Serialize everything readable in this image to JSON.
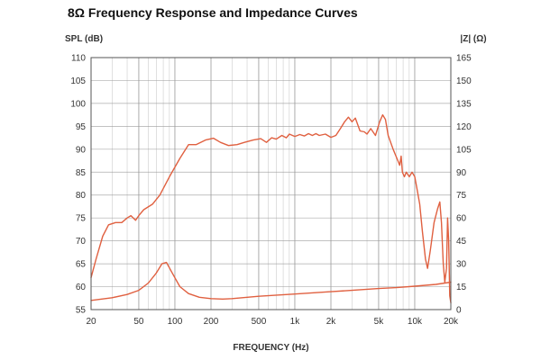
{
  "chart_data": {
    "type": "line",
    "title": "8Ω Frequency Response and Impedance Curves",
    "xlabel": "FREQUENCY (Hz)",
    "ylabel_left": "SPL (dB)",
    "ylabel_right": "|Z| (Ω)",
    "x_scale": "log",
    "xlim": [
      20,
      20000
    ],
    "ylim_left": [
      55,
      110
    ],
    "ylim_right": [
      0,
      165
    ],
    "grid": true,
    "colors": {
      "curve": "#e06040",
      "grid": "#999999",
      "frame": "#555555"
    },
    "x_ticks": [
      {
        "value": 20,
        "label": "20"
      },
      {
        "value": 50,
        "label": "50"
      },
      {
        "value": 100,
        "label": "100"
      },
      {
        "value": 200,
        "label": "200"
      },
      {
        "value": 500,
        "label": "500"
      },
      {
        "value": 1000,
        "label": "1k"
      },
      {
        "value": 2000,
        "label": "2k"
      },
      {
        "value": 5000,
        "label": "5k"
      },
      {
        "value": 10000,
        "label": "10k"
      },
      {
        "value": 20000,
        "label": "20k"
      }
    ],
    "y_ticks_left": [
      110,
      105,
      100,
      95,
      90,
      85,
      80,
      75,
      70,
      65,
      60,
      55
    ],
    "y_ticks_right": [
      165,
      150,
      135,
      120,
      105,
      90,
      75,
      60,
      45,
      30,
      15,
      0
    ],
    "series": [
      {
        "axis": "left",
        "points": [
          [
            20,
            62
          ],
          [
            22,
            66
          ],
          [
            25,
            71
          ],
          [
            28,
            73.5
          ],
          [
            32,
            74
          ],
          [
            36,
            74
          ],
          [
            40,
            75
          ],
          [
            43,
            75.5
          ],
          [
            47,
            74.5
          ],
          [
            50,
            75.5
          ],
          [
            55,
            76.8
          ],
          [
            65,
            78
          ],
          [
            75,
            80
          ],
          [
            90,
            84
          ],
          [
            110,
            88
          ],
          [
            130,
            91
          ],
          [
            150,
            91
          ],
          [
            180,
            92
          ],
          [
            210,
            92.4
          ],
          [
            240,
            91.5
          ],
          [
            280,
            90.8
          ],
          [
            330,
            91
          ],
          [
            380,
            91.5
          ],
          [
            450,
            92
          ],
          [
            520,
            92.3
          ],
          [
            580,
            91.5
          ],
          [
            640,
            92.5
          ],
          [
            700,
            92.2
          ],
          [
            780,
            93
          ],
          [
            850,
            92.5
          ],
          [
            900,
            93.3
          ],
          [
            1000,
            92.8
          ],
          [
            1100,
            93.2
          ],
          [
            1200,
            92.9
          ],
          [
            1300,
            93.4
          ],
          [
            1400,
            93
          ],
          [
            1500,
            93.4
          ],
          [
            1600,
            93
          ],
          [
            1800,
            93.3
          ],
          [
            2000,
            92.6
          ],
          [
            2200,
            93
          ],
          [
            2400,
            94.5
          ],
          [
            2600,
            96
          ],
          [
            2800,
            97
          ],
          [
            3000,
            96
          ],
          [
            3200,
            96.8
          ],
          [
            3500,
            94
          ],
          [
            3800,
            93.8
          ],
          [
            4000,
            93.3
          ],
          [
            4300,
            94.5
          ],
          [
            4700,
            93
          ],
          [
            5100,
            96
          ],
          [
            5400,
            97.5
          ],
          [
            5700,
            96.5
          ],
          [
            6000,
            93
          ],
          [
            6600,
            90
          ],
          [
            7100,
            88
          ],
          [
            7500,
            86.5
          ],
          [
            7700,
            88.5
          ],
          [
            7900,
            85
          ],
          [
            8200,
            84
          ],
          [
            8500,
            85
          ],
          [
            9000,
            84
          ],
          [
            9500,
            85
          ],
          [
            10000,
            84
          ],
          [
            10500,
            81
          ],
          [
            11000,
            78
          ],
          [
            11600,
            72
          ],
          [
            12300,
            66
          ],
          [
            12800,
            64
          ],
          [
            13500,
            68
          ],
          [
            14500,
            74
          ],
          [
            15500,
            77
          ],
          [
            16200,
            78.5
          ],
          [
            16700,
            74
          ],
          [
            17300,
            65
          ],
          [
            17800,
            61
          ],
          [
            18400,
            64
          ],
          [
            18800,
            75
          ],
          [
            19200,
            70
          ],
          [
            19600,
            58
          ],
          [
            20000,
            56.5
          ]
        ]
      },
      {
        "axis": "left",
        "points": [
          [
            20,
            57
          ],
          [
            30,
            57.6
          ],
          [
            40,
            58.3
          ],
          [
            50,
            59.2
          ],
          [
            60,
            60.8
          ],
          [
            70,
            63
          ],
          [
            78,
            65
          ],
          [
            85,
            65.3
          ],
          [
            95,
            63
          ],
          [
            110,
            60
          ],
          [
            130,
            58.5
          ],
          [
            160,
            57.7
          ],
          [
            200,
            57.4
          ],
          [
            250,
            57.3
          ],
          [
            300,
            57.4
          ],
          [
            500,
            57.9
          ],
          [
            1000,
            58.4
          ],
          [
            2000,
            58.9
          ],
          [
            3000,
            59.2
          ],
          [
            5000,
            59.6
          ],
          [
            7000,
            59.8
          ],
          [
            10000,
            60.1
          ],
          [
            15000,
            60.5
          ],
          [
            20000,
            61
          ]
        ]
      }
    ]
  }
}
